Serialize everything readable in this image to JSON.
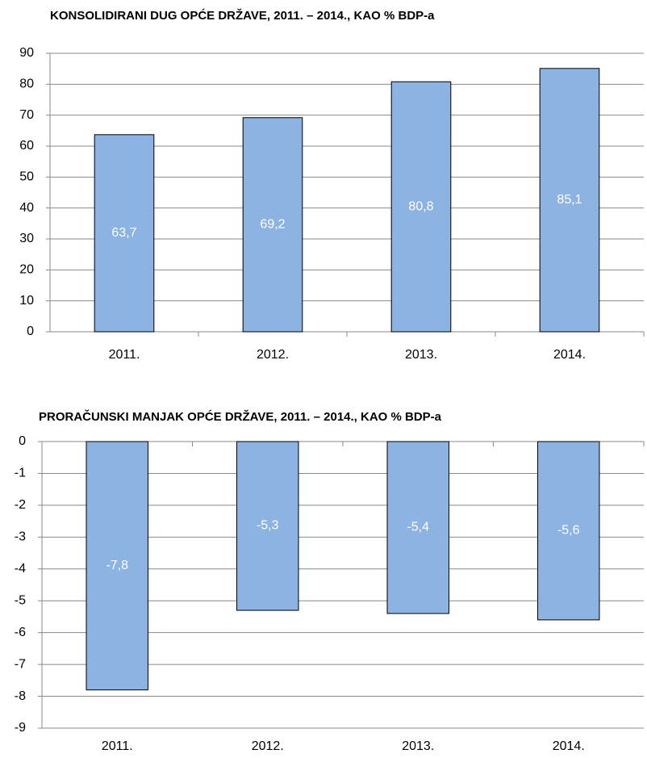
{
  "chart_data": [
    {
      "type": "bar",
      "title": "KONSOLIDIRANI DUG OPĆE DRŽAVE, 2011. – 2014., KAO % BDP-a",
      "categories": [
        "2011.",
        "2012.",
        "2013.",
        "2014."
      ],
      "values": [
        63.7,
        69.2,
        80.8,
        85.1
      ],
      "value_labels": [
        "63,7",
        "69,2",
        "80,8",
        "85,1"
      ],
      "color": "#8db3e2",
      "ylim": [
        0,
        90
      ],
      "yticks": [
        0,
        10,
        20,
        30,
        40,
        50,
        60,
        70,
        80,
        90
      ],
      "grid": true
    },
    {
      "type": "bar",
      "title": "PRORAČUNSKI MANJAK OPĆE DRŽAVE, 2011. – 2014., KAO % BDP-a",
      "categories": [
        "2011.",
        "2012.",
        "2013.",
        "2014."
      ],
      "values": [
        -7.8,
        -5.3,
        -5.4,
        -5.6
      ],
      "value_labels": [
        "-7,8",
        "-5,3",
        "-5,4",
        "-5,6"
      ],
      "color": "#8db3e2",
      "ylim": [
        -9,
        0
      ],
      "yticks": [
        0,
        -1,
        -2,
        -3,
        -4,
        -5,
        -6,
        -7,
        -8,
        -9
      ],
      "grid": true
    }
  ]
}
